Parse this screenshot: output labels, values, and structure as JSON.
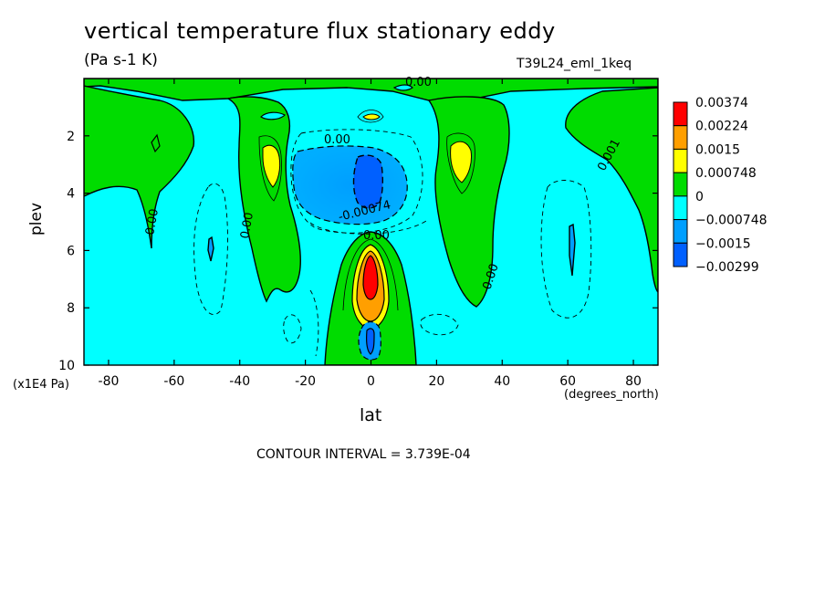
{
  "header": {
    "title": "vertical temperature flux stationary eddy",
    "units": "(Pa s-1 K)",
    "run_id": "T39L24_eml_1keq"
  },
  "footer": {
    "contour_interval": "CONTOUR INTERVAL = 3.739E-04"
  },
  "chart_data": {
    "type": "heatmap",
    "title": "vertical temperature flux stationary eddy",
    "xlabel": "lat",
    "xunits": "(degrees_north)",
    "ylabel": "plev",
    "yunits": "(x1E4 Pa)",
    "xlim": [
      -87.5,
      87.5
    ],
    "ylim": [
      0,
      10
    ],
    "y_inverted": true,
    "xticks": [
      -80,
      -60,
      -40,
      -20,
      0,
      20,
      40,
      60,
      80
    ],
    "yticks": [
      2,
      4,
      6,
      8,
      10
    ],
    "contour_labels": [
      "0.00",
      "0.00",
      "0.00",
      "0.00",
      "0.00",
      "0.00",
      "0.001",
      "-0.00074",
      "0.00"
    ],
    "colorbar": {
      "levels": [
        "0.00374",
        "0.00224",
        "0.0015",
        "0.000748",
        "0",
        "-0.000748",
        "-0.0015",
        "-0.00299"
      ],
      "colors": [
        "#ff0000",
        "#ff9f00",
        "#ffff00",
        "#00dc00",
        "#00ffff",
        "#009fff",
        "#0060ff"
      ]
    },
    "features": [
      {
        "name": "equatorial upper negative core",
        "lat": 0,
        "plev": 3.8,
        "value": -0.0015
      },
      {
        "name": "equatorial positive maximum",
        "lat": 0,
        "plev": 6.8,
        "value": 0.00374
      },
      {
        "name": "equatorial surface minimum",
        "lat": 0,
        "plev": 9.2,
        "value": -0.0015
      },
      {
        "name": "southern subtropical positive",
        "lat": -30,
        "plev": 3.0,
        "value": 0.0015
      },
      {
        "name": "northern subtropical positive",
        "lat": 30,
        "plev": 3.0,
        "value": 0.0015
      },
      {
        "name": "southern high-latitude positive",
        "lat": -75,
        "plev": 2.5,
        "value": 0.000748
      },
      {
        "name": "northern high-latitude positive",
        "lat": 80,
        "plev": 2.5,
        "value": 0.000748
      }
    ],
    "contour_interval": 0.0003739
  }
}
